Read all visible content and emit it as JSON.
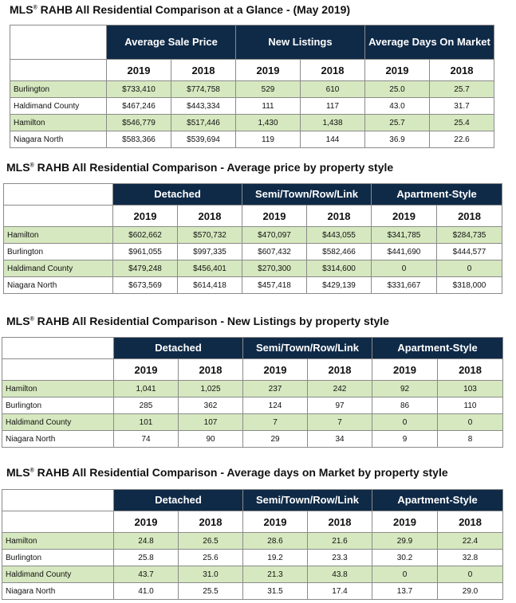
{
  "sections": [
    {
      "title": "MLS",
      "reg": "®",
      "title_rest": " RAHB All Residential Comparison at a Glance - (May 2019)",
      "groups": [
        "Average Sale Price",
        "New Listings",
        "Average Days On Market"
      ],
      "years": [
        "2019",
        "2018",
        "2019",
        "2018",
        "2019",
        "2018"
      ],
      "rows": [
        {
          "label": "Burlington",
          "cells": [
            "$733,410",
            "$774,758",
            "529",
            "610",
            "25.0",
            "25.7"
          ]
        },
        {
          "label": "Haldimand County",
          "cells": [
            "$467,246",
            "$443,334",
            "111",
            "117",
            "43.0",
            "31.7"
          ]
        },
        {
          "label": "Hamilton",
          "cells": [
            "$546,779",
            "$517,446",
            "1,430",
            "1,438",
            "25.7",
            "25.4"
          ]
        },
        {
          "label": "Niagara North",
          "cells": [
            "$583,366",
            "$539,694",
            "119",
            "144",
            "36.9",
            "22.6"
          ]
        }
      ]
    },
    {
      "title": "MLS",
      "reg": "®",
      "title_rest": " RAHB All Residential Comparison - Average price by property style",
      "groups": [
        "Detached",
        "Semi/Town/Row/Link",
        "Apartment-Style"
      ],
      "years": [
        "2019",
        "2018",
        "2019",
        "2018",
        "2019",
        "2018"
      ],
      "rows": [
        {
          "label": "Hamilton",
          "cells": [
            "$602,662",
            "$570,732",
            "$470,097",
            "$443,055",
            "$341,785",
            "$284,735"
          ]
        },
        {
          "label": "Burlington",
          "cells": [
            "$961,055",
            "$997,335",
            "$607,432",
            "$582,466",
            "$441,690",
            "$444,577"
          ]
        },
        {
          "label": "Haldimand County",
          "cells": [
            "$479,248",
            "$456,401",
            "$270,300",
            "$314,600",
            "0",
            "0"
          ]
        },
        {
          "label": "Niagara North",
          "cells": [
            "$673,569",
            "$614,418",
            "$457,418",
            "$429,139",
            "$331,667",
            "$318,000"
          ]
        }
      ]
    },
    {
      "title": "MLS",
      "reg": "®",
      "title_rest": " RAHB All Residential Comparison - New Listings by property style",
      "groups": [
        "Detached",
        "Semi/Town/Row/Link",
        "Apartment-Style"
      ],
      "years": [
        "2019",
        "2018",
        "2019",
        "2018",
        "2019",
        "2018"
      ],
      "rows": [
        {
          "label": "Hamilton",
          "cells": [
            "1,041",
            "1,025",
            "237",
            "242",
            "92",
            "103"
          ]
        },
        {
          "label": "Burlington",
          "cells": [
            "285",
            "362",
            "124",
            "97",
            "86",
            "110"
          ]
        },
        {
          "label": "Haldimand County",
          "cells": [
            "101",
            "107",
            "7",
            "7",
            "0",
            "0"
          ]
        },
        {
          "label": "Niagara North",
          "cells": [
            "74",
            "90",
            "29",
            "34",
            "9",
            "8"
          ]
        }
      ]
    },
    {
      "title": "MLS",
      "reg": "®",
      "title_rest": " RAHB All Residential Comparison - Average days on Market by property style",
      "groups": [
        "Detached",
        "Semi/Town/Row/Link",
        "Apartment-Style"
      ],
      "years": [
        "2019",
        "2018",
        "2019",
        "2018",
        "2019",
        "2018"
      ],
      "rows": [
        {
          "label": "Hamilton",
          "cells": [
            "24.8",
            "26.5",
            "28.6",
            "21.6",
            "29.9",
            "22.4"
          ]
        },
        {
          "label": "Burlington",
          "cells": [
            "25.8",
            "25.6",
            "19.2",
            "23.3",
            "30.2",
            "32.8"
          ]
        },
        {
          "label": "Haldimand County",
          "cells": [
            "43.7",
            "31.0",
            "21.3",
            "43.8",
            "0",
            "0"
          ]
        },
        {
          "label": "Niagara North",
          "cells": [
            "41.0",
            "25.5",
            "31.5",
            "17.4",
            "13.7",
            "29.0"
          ]
        }
      ]
    }
  ],
  "colors": {
    "header": "#0f2a47",
    "highlight": "#d6e8bf"
  }
}
